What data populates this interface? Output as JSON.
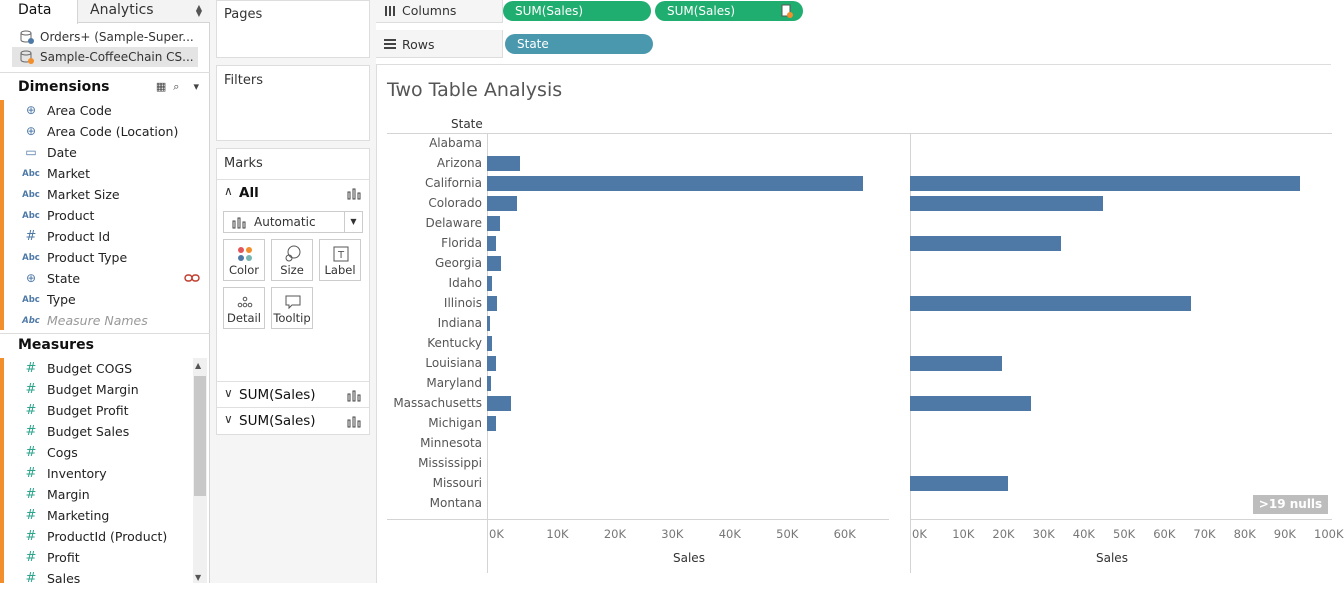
{
  "tabs": {
    "data": "Data",
    "analytics": "Analytics"
  },
  "datasources": [
    "Orders+ (Sample-Super...",
    "Sample-CoffeeChain CS..."
  ],
  "dimensions": {
    "title": "Dimensions",
    "items": [
      {
        "label": "Area Code",
        "icon": "globe-icon"
      },
      {
        "label": "Area Code (Location)",
        "icon": "globe-icon"
      },
      {
        "label": "Date",
        "icon": "calendar-icon"
      },
      {
        "label": "Market",
        "icon": "abc-icon"
      },
      {
        "label": "Market Size",
        "icon": "abc-icon"
      },
      {
        "label": "Product",
        "icon": "abc-icon"
      },
      {
        "label": "Product Id",
        "icon": "hash-icon"
      },
      {
        "label": "Product Type",
        "icon": "abc-icon"
      },
      {
        "label": "State",
        "icon": "globe-icon"
      },
      {
        "label": "Type",
        "icon": "abc-icon"
      },
      {
        "label": "Measure Names",
        "icon": "abc-icon"
      }
    ]
  },
  "measures": {
    "title": "Measures",
    "items": [
      "Budget COGS",
      "Budget Margin",
      "Budget Profit",
      "Budget Sales",
      "Cogs",
      "Inventory",
      "Margin",
      "Marketing",
      "ProductId (Product)",
      "Profit",
      "Sales"
    ]
  },
  "cards": {
    "pages": "Pages",
    "filters": "Filters",
    "marks": "Marks",
    "all": "All",
    "mark_type": "Automatic",
    "buttons": [
      "Color",
      "Size",
      "Label",
      "Detail",
      "Tooltip"
    ],
    "sum_rows": [
      "SUM(Sales)",
      "SUM(Sales)"
    ]
  },
  "shelves": {
    "columns_label": "Columns",
    "rows_label": "Rows",
    "column_pills": [
      "SUM(Sales)",
      "SUM(Sales)"
    ],
    "row_pills": [
      "State"
    ]
  },
  "colors": {
    "bar": "#4e79a7",
    "green_pill": "#1fae6f",
    "blue_pill": "#4a98ad",
    "accent": "#f28e2b"
  },
  "view": {
    "title": "Two Table Analysis",
    "row_header": "State",
    "nulls_badge": ">19 nulls"
  },
  "chart_data": [
    {
      "type": "bar",
      "orientation": "horizontal",
      "categories": [
        "Alabama",
        "Arizona",
        "California",
        "Colorado",
        "Delaware",
        "Florida",
        "Georgia",
        "Idaho",
        "Illinois",
        "Indiana",
        "Kentucky",
        "Louisiana",
        "Maryland",
        "Massachusetts",
        "Michigan",
        "Minnesota",
        "Mississippi",
        "Missouri",
        "Montana"
      ],
      "values": [
        0,
        5800,
        65500,
        5300,
        2300,
        1600,
        2500,
        800,
        1800,
        600,
        800,
        1500,
        700,
        4100,
        1500,
        0,
        0,
        0,
        0
      ],
      "xlabel": "Sales",
      "xlim": [
        0,
        70000
      ],
      "ticks": [
        "0K",
        "10K",
        "20K",
        "30K",
        "40K",
        "50K",
        "60K"
      ]
    },
    {
      "type": "bar",
      "orientation": "horizontal",
      "categories": [
        "Alabama",
        "Arizona",
        "California",
        "Colorado",
        "Delaware",
        "Florida",
        "Georgia",
        "Idaho",
        "Illinois",
        "Indiana",
        "Kentucky",
        "Louisiana",
        "Maryland",
        "Massachusetts",
        "Michigan",
        "Minnesota",
        "Mississippi",
        "Missouri",
        "Montana"
      ],
      "values": [
        null,
        null,
        97000,
        48000,
        null,
        37500,
        null,
        null,
        70000,
        null,
        null,
        23000,
        null,
        30000,
        null,
        null,
        null,
        24500,
        null
      ],
      "xlabel": "Sales",
      "xlim": [
        0,
        100000
      ],
      "ticks": [
        "0K",
        "10K",
        "20K",
        "30K",
        "40K",
        "50K",
        "60K",
        "70K",
        "80K",
        "90K",
        "100K"
      ]
    }
  ]
}
